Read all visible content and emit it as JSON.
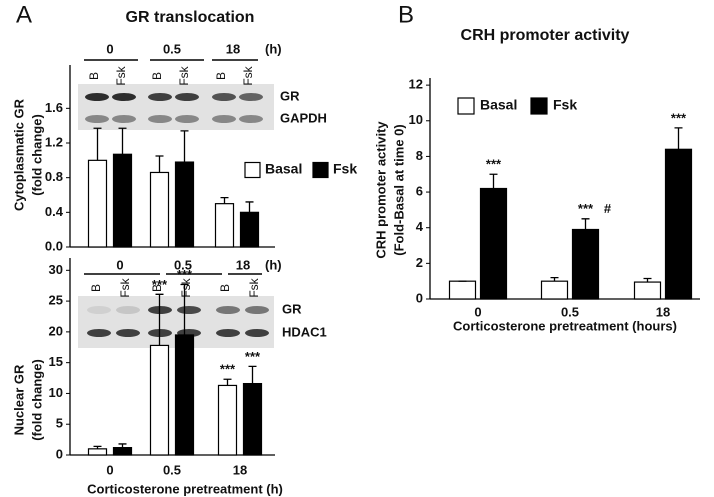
{
  "labels": {
    "panel_a": "A",
    "panel_b": "B",
    "title_a": "GR translocation"
  },
  "blots": [
    {
      "time_labels": [
        "0",
        "0.5",
        "18"
      ],
      "unit": "(h)",
      "lanes": [
        "B",
        "Fsk",
        "B",
        "Fsk",
        "B",
        "Fsk"
      ],
      "proteins": [
        "GR",
        "GAPDH"
      ]
    },
    {
      "time_labels": [
        "0",
        "0.5",
        "18"
      ],
      "unit": "(h)",
      "lanes": [
        "B",
        "Fsk",
        "B",
        "Fsk",
        "B",
        "Fsk"
      ],
      "proteins": [
        "GR",
        "HDAC1"
      ]
    }
  ],
  "chart_data": [
    {
      "type": "bar",
      "ylabel": [
        "Cytoplasmatic GR",
        "(fold change)"
      ],
      "categories": [
        null,
        null,
        null
      ],
      "series": [
        {
          "name": "Basal",
          "color": "#ffffff",
          "values": [
            1.0,
            0.86,
            0.5
          ],
          "errors": [
            0.37,
            0.19,
            0.07
          ]
        },
        {
          "name": "Fsk",
          "color": "#000000",
          "values": [
            1.07,
            0.98,
            0.4
          ],
          "errors": [
            0.3,
            0.36,
            0.12
          ]
        }
      ],
      "ylim": [
        0,
        2.1
      ],
      "yticks": [
        {
          "value": 0,
          "label": "0.0"
        },
        0.4,
        0.8,
        1.2,
        1.6
      ]
    },
    {
      "type": "bar",
      "ylabel": [
        "Nuclear GR",
        "(fold change)"
      ],
      "xlabel": "Corticosterone pretreatment (h)",
      "categories": [
        "0",
        "0.5",
        "18"
      ],
      "series": [
        {
          "color": "#ffffff",
          "values": [
            1.0,
            17.8,
            11.3
          ],
          "errors": [
            0.4,
            8.3,
            1.0
          ],
          "annotations": [
            null,
            "***",
            "***"
          ]
        },
        {
          "color": "#000000",
          "values": [
            1.2,
            19.5,
            11.6
          ],
          "errors": [
            0.6,
            8.2,
            2.8
          ],
          "annotations": [
            null,
            "***",
            "***"
          ]
        }
      ],
      "ylim": [
        0,
        32
      ],
      "yticks": [
        0,
        5,
        10,
        15,
        20,
        25,
        30
      ]
    },
    {
      "type": "bar",
      "title": "CRH promoter activity",
      "ylabel": [
        "CRH promoter activity",
        "(Fold-Basal at time 0)"
      ],
      "xlabel": "Corticosterone pretreatment (hours)",
      "categories": [
        "0",
        "0.5",
        "18"
      ],
      "series": [
        {
          "name": "Basal",
          "color": "#ffffff",
          "values": [
            1.0,
            1.0,
            0.95
          ],
          "errors": [
            0.0,
            0.2,
            0.2
          ]
        },
        {
          "name": "Fsk",
          "color": "#000000",
          "values": [
            6.2,
            3.9,
            8.4
          ],
          "errors": [
            0.8,
            0.6,
            1.2
          ],
          "annotations": [
            "***",
            "***",
            "***"
          ],
          "extra_annotations": [
            null,
            "#",
            null
          ]
        }
      ],
      "ylim": [
        0,
        12.4
      ],
      "yticks": [
        0,
        2,
        4,
        6,
        8,
        10,
        12
      ]
    }
  ]
}
